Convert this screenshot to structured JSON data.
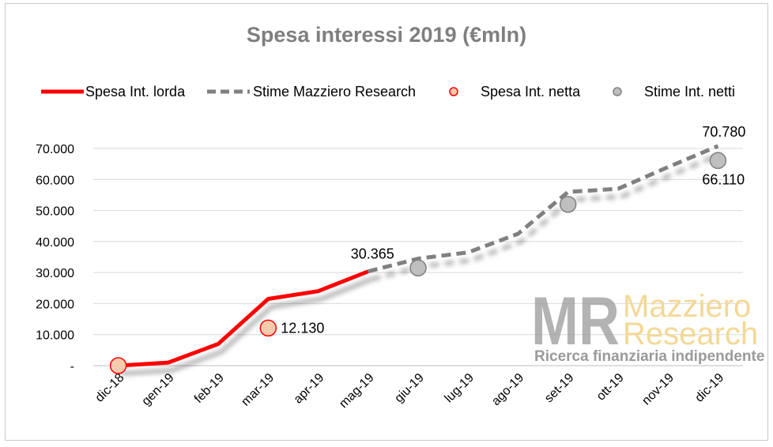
{
  "chart_data": {
    "type": "line",
    "title": "Spesa interessi 2019 (€mln)",
    "categories": [
      "dic-18",
      "gen-19",
      "feb-19",
      "mar-19",
      "apr-19",
      "mag-19",
      "giu-19",
      "lug-19",
      "ago-19",
      "set-19",
      "ott-19",
      "nov-19",
      "dic-19"
    ],
    "ylim": [
      0,
      75000
    ],
    "yticks": [
      0,
      10000,
      20000,
      30000,
      40000,
      50000,
      60000,
      70000
    ],
    "ytick_labels": [
      "-",
      "10.000",
      "20.000",
      "30.000",
      "40.000",
      "50.000",
      "60.000",
      "70.000"
    ],
    "grid": true,
    "legend_position": "top",
    "series": [
      {
        "name": "Spesa Int. lorda",
        "style": "solid-line",
        "color": "#ff0000",
        "values": [
          0,
          1000,
          7000,
          21500,
          24000,
          30365,
          null,
          null,
          null,
          null,
          null,
          null,
          null
        ]
      },
      {
        "name": "Stime Mazziero Research",
        "style": "dashed-line",
        "color": "#808080",
        "values": [
          null,
          null,
          null,
          null,
          null,
          30365,
          34500,
          36500,
          42500,
          56000,
          57000,
          64000,
          70780
        ]
      },
      {
        "name": "Spesa Int. netta",
        "style": "marker",
        "color": "#ff0000",
        "fill": "#f8cbad",
        "points": [
          {
            "x": "dic-18",
            "y": 0
          },
          {
            "x": "mar-19",
            "y": 12130
          }
        ]
      },
      {
        "name": "Stime Int. netti",
        "style": "marker",
        "color": "#808080",
        "fill": "#bfbfbf",
        "points": [
          {
            "x": "giu-19",
            "y": 31500
          },
          {
            "x": "set-19",
            "y": 52000
          },
          {
            "x": "dic-19",
            "y": 66110
          }
        ]
      }
    ],
    "data_labels": [
      {
        "text": "30.365",
        "x": "mag-19",
        "y": 30365
      },
      {
        "text": "12.130",
        "x": "mar-19",
        "y": 12130
      },
      {
        "text": "70.780",
        "x": "dic-19",
        "y": 70780
      },
      {
        "text": "66.110",
        "x": "dic-19",
        "y": 66110
      }
    ]
  },
  "watermark": {
    "logo_letters": "MR",
    "line1": "Mazziero",
    "line2": "Research",
    "tagline": "Ricerca finanziaria indipendente"
  }
}
